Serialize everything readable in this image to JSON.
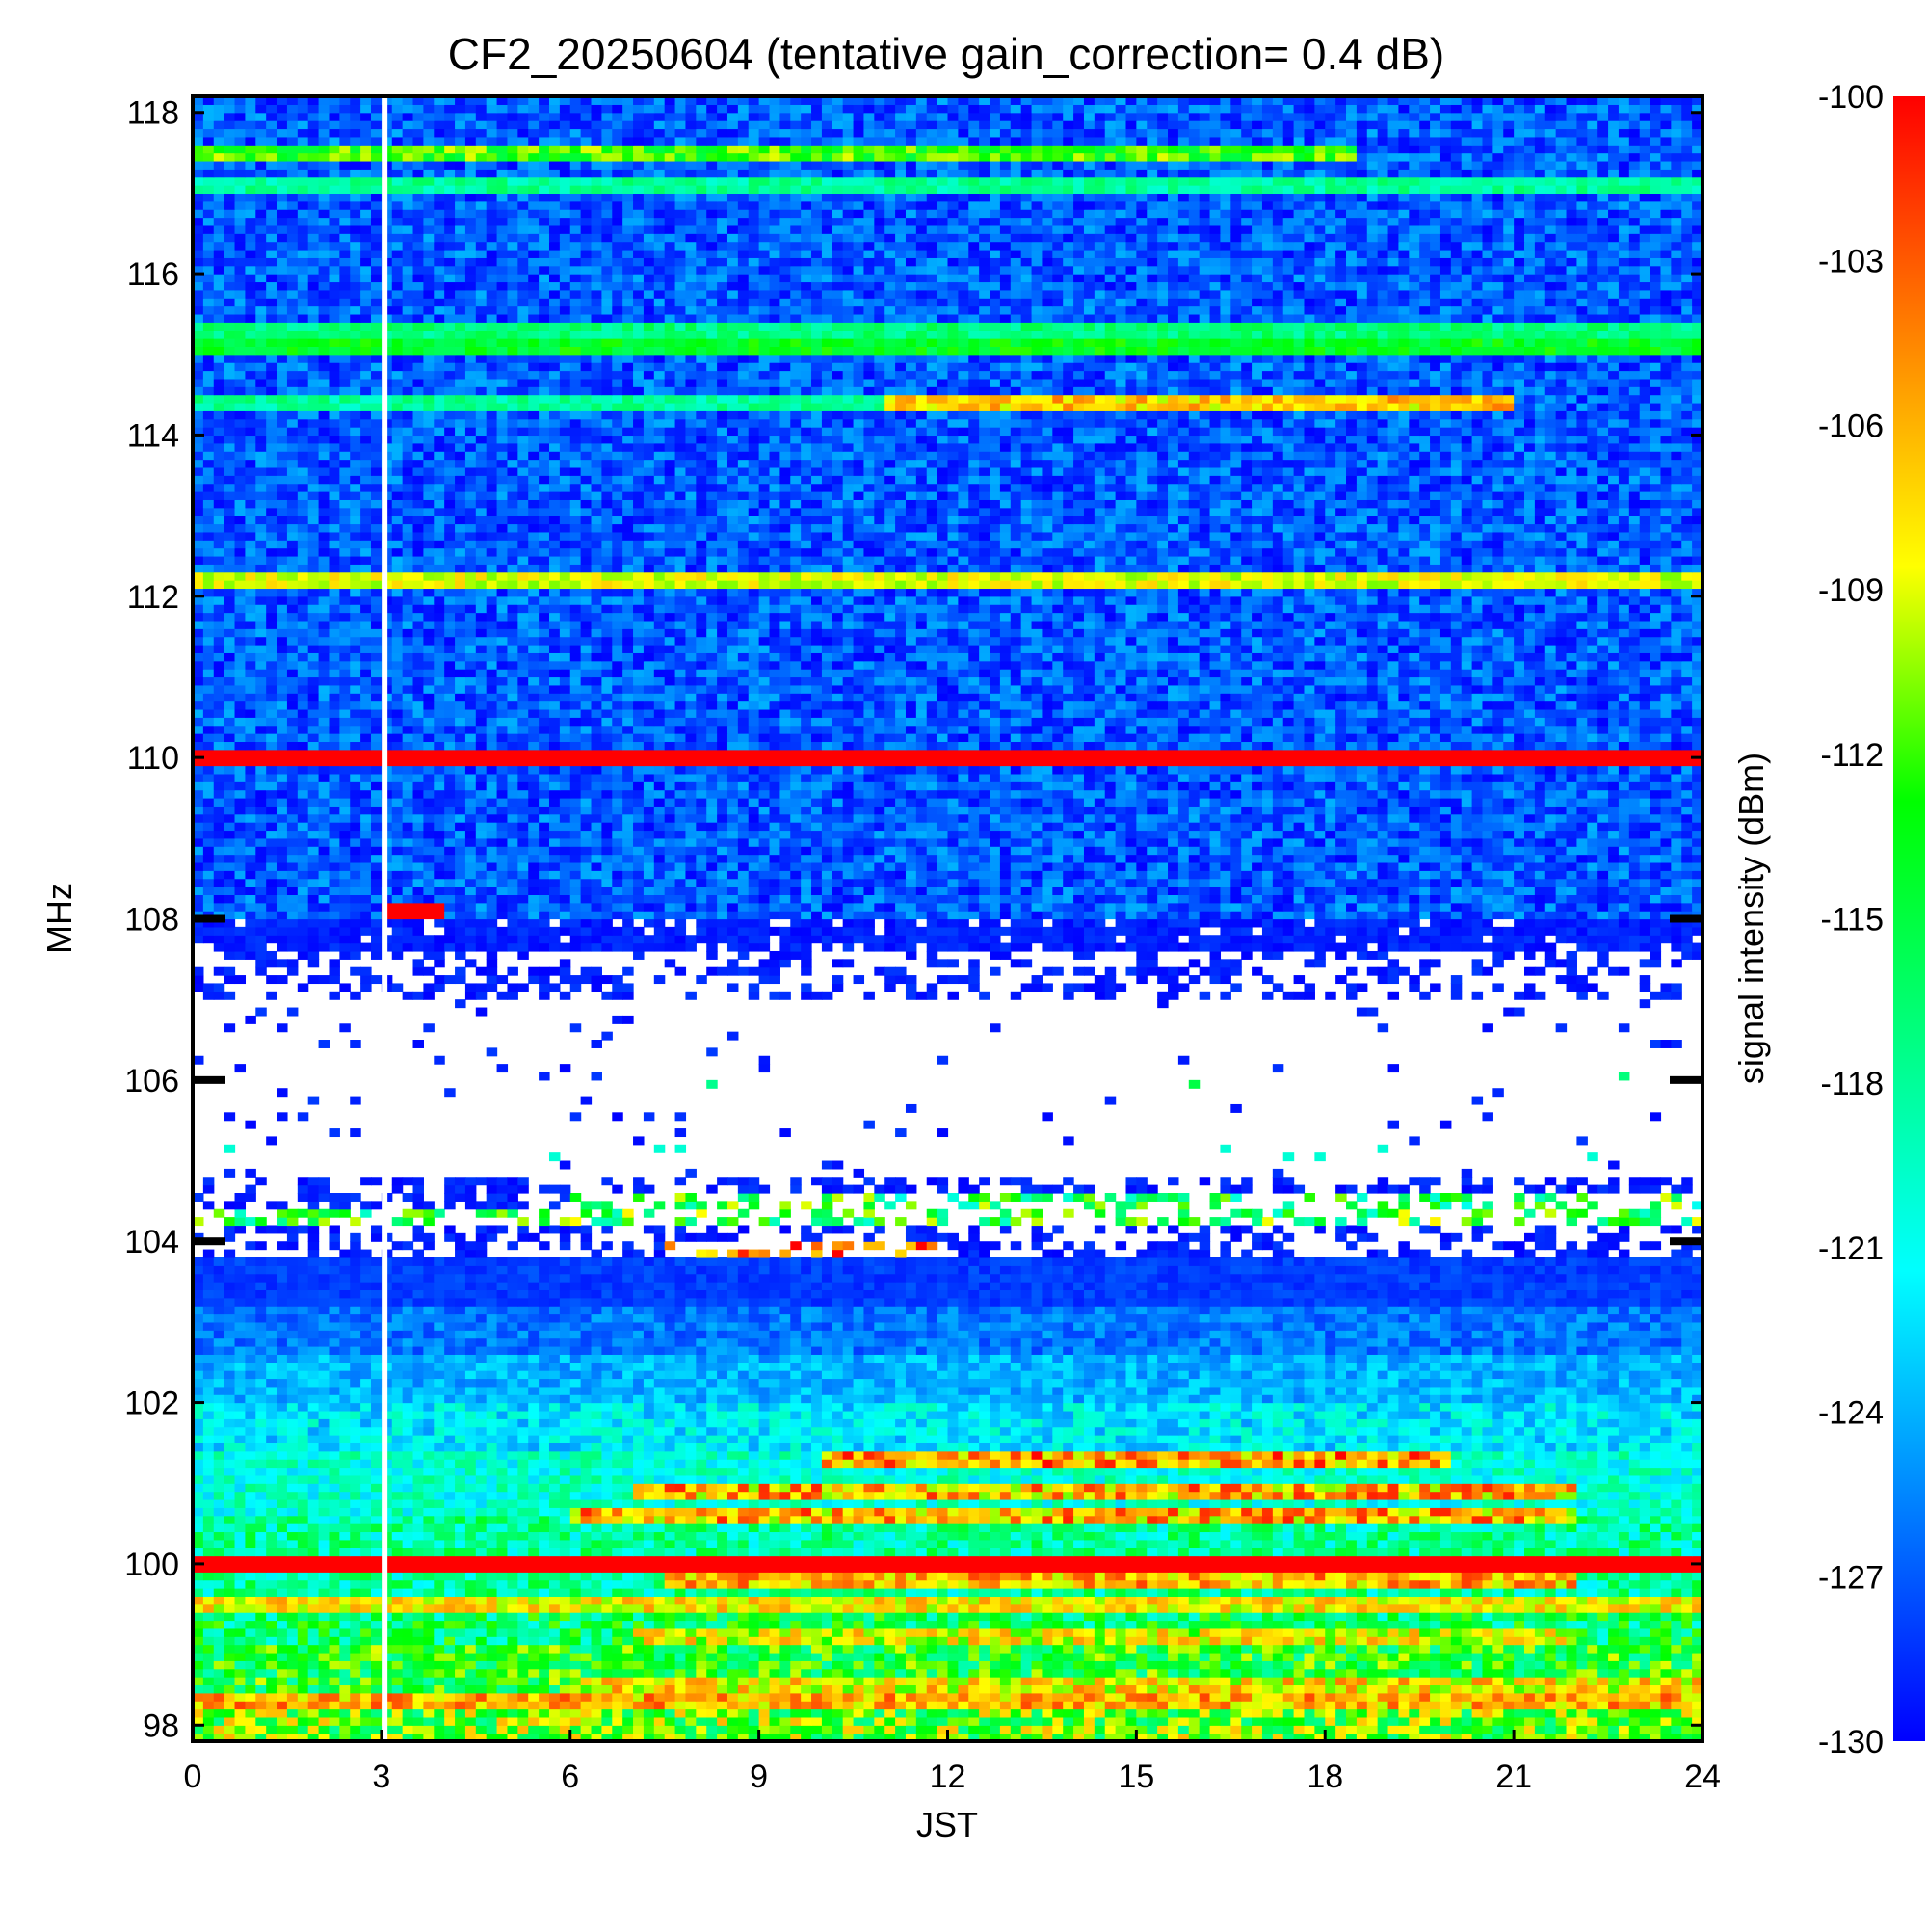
{
  "chart_data": {
    "type": "heatmap",
    "title": "CF2_20250604 (tentative gain_correction=  0.4 dB)",
    "xlabel": "JST",
    "ylabel": "MHz",
    "colorbar_label": "signal intensity (dBm)",
    "xlim": [
      0,
      24
    ],
    "ylim": [
      97.8,
      118.2
    ],
    "color_range": [
      -130,
      -100
    ],
    "x_ticks": [
      0,
      3,
      6,
      9,
      12,
      15,
      18,
      21,
      24
    ],
    "y_ticks": [
      98,
      100,
      102,
      104,
      106,
      108,
      110,
      112,
      114,
      116,
      118
    ],
    "colorbar_ticks": [
      -100,
      -103,
      -106,
      -109,
      -112,
      -115,
      -118,
      -121,
      -124,
      -127,
      -130
    ],
    "colormap": [
      "#0000ff",
      "#0080ff",
      "#00ffff",
      "#00ff80",
      "#00ff00",
      "#ffff00",
      "#ff8000",
      "#ff0000"
    ],
    "data_gap": {
      "x": 3.05,
      "note": "no data"
    },
    "background": [
      {
        "f_min": 97.8,
        "f_max": 98.4,
        "dbm": -112,
        "variability": 6
      },
      {
        "f_min": 98.4,
        "f_max": 99.0,
        "dbm": -114,
        "variability": 5
      },
      {
        "f_min": 99.0,
        "f_max": 99.6,
        "dbm": -116,
        "variability": 5
      },
      {
        "f_min": 99.6,
        "f_max": 100.6,
        "dbm": -118,
        "variability": 4
      },
      {
        "f_min": 100.6,
        "f_max": 101.4,
        "dbm": -120,
        "variability": 3
      },
      {
        "f_min": 101.4,
        "f_max": 102.0,
        "dbm": -122,
        "variability": 3
      },
      {
        "f_min": 102.0,
        "f_max": 102.6,
        "dbm": -124,
        "variability": 2
      },
      {
        "f_min": 102.6,
        "f_max": 103.2,
        "dbm": -126,
        "variability": 2
      },
      {
        "f_min": 103.2,
        "f_max": 103.8,
        "dbm": -128,
        "variability": 1
      },
      {
        "f_min": 103.8,
        "f_max": 104.8,
        "dbm": -129,
        "variability": 1,
        "gaps": 0.55
      },
      {
        "f_min": 104.8,
        "f_max": 107.0,
        "dbm": -129,
        "variability": 1,
        "gaps": 0.97
      },
      {
        "f_min": 107.0,
        "f_max": 107.6,
        "dbm": -129,
        "variability": 1,
        "gaps": 0.6
      },
      {
        "f_min": 107.6,
        "f_max": 108.0,
        "dbm": -129,
        "variability": 1,
        "gaps": 0.1
      },
      {
        "f_min": 108.0,
        "f_max": 118.2,
        "dbm": -127,
        "variability": 3
      }
    ],
    "persistent_signals": [
      {
        "freq": 98.3,
        "dbm": -106,
        "t_start": 0,
        "t_end": 24,
        "variability": 4
      },
      {
        "freq": 98.5,
        "dbm": -108,
        "t_start": 6,
        "t_end": 24,
        "variability": 4
      },
      {
        "freq": 99.1,
        "dbm": -109,
        "t_start": 7,
        "t_end": 22,
        "variability": 4
      },
      {
        "freq": 99.5,
        "dbm": -108,
        "t_start": 0,
        "t_end": 24,
        "variability": 3
      },
      {
        "freq": 99.8,
        "dbm": -106,
        "t_start": 7.5,
        "t_end": 22,
        "variability": 4
      },
      {
        "freq": 100.0,
        "dbm": -100,
        "t_start": 0,
        "t_end": 24,
        "variability": 0
      },
      {
        "freq": 100.6,
        "dbm": -106,
        "t_start": 6,
        "t_end": 22,
        "variability": 5
      },
      {
        "freq": 100.9,
        "dbm": -106,
        "t_start": 7,
        "t_end": 22,
        "variability": 5
      },
      {
        "freq": 101.3,
        "dbm": -105,
        "t_start": 10,
        "t_end": 20,
        "variability": 5
      },
      {
        "freq": 103.9,
        "dbm": -104,
        "t_start": 7.5,
        "t_end": 12,
        "variability": 5
      },
      {
        "freq": 104.3,
        "dbm": -114,
        "t_start": 0,
        "t_end": 24,
        "variability": 6
      },
      {
        "freq": 104.5,
        "dbm": -115,
        "t_start": 6,
        "t_end": 24,
        "variability": 6
      },
      {
        "freq": 105.1,
        "dbm": -120,
        "t_start": 0,
        "t_end": 24,
        "variability": 0
      },
      {
        "freq": 106.0,
        "dbm": -114,
        "t_start": 6.5,
        "t_end": 23.5,
        "variability": 6
      },
      {
        "freq": 108.1,
        "dbm": -100,
        "t_start": 3.05,
        "t_end": 4.0,
        "variability": 0
      },
      {
        "freq": 110.0,
        "dbm": -100,
        "t_start": 0,
        "t_end": 24,
        "variability": 0
      },
      {
        "freq": 112.2,
        "dbm": -109,
        "t_start": 0,
        "t_end": 24,
        "variability": 2
      },
      {
        "freq": 114.4,
        "dbm": -118,
        "t_start": 0,
        "t_end": 11,
        "variability": 2
      },
      {
        "freq": 114.4,
        "dbm": -107,
        "t_start": 11,
        "t_end": 21,
        "variability": 3
      },
      {
        "freq": 115.1,
        "dbm": -114,
        "t_start": 0,
        "t_end": 24,
        "variability": 2
      },
      {
        "freq": 115.3,
        "dbm": -117,
        "t_start": 0,
        "t_end": 24,
        "variability": 2
      },
      {
        "freq": 117.1,
        "dbm": -118,
        "t_start": 0,
        "t_end": 24,
        "variability": 2
      },
      {
        "freq": 117.5,
        "dbm": -112,
        "t_start": 0,
        "t_end": 18.5,
        "variability": 3
      }
    ]
  }
}
